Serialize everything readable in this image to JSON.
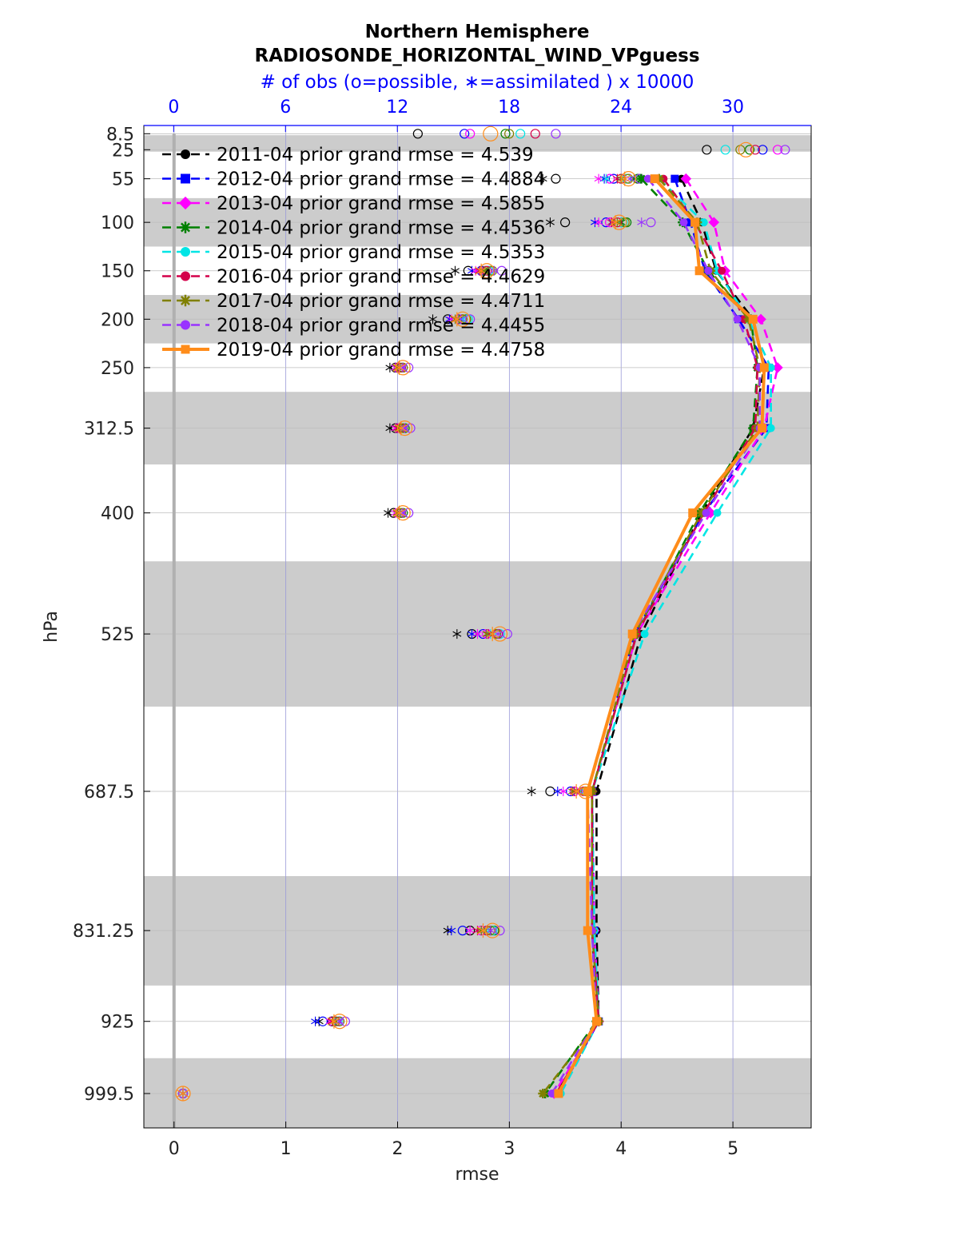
{
  "chart_data": {
    "type": "line",
    "title": "Northern Hemisphere",
    "subtitle": "RADIOSONDE_HORIZONTAL_WIND_VPguess",
    "top_axis_label": "# of obs (o=possible, ∗=assimilated ) x 10000",
    "xlabel": "rmse",
    "ylabel": "hPa",
    "xlim": [
      -0.27,
      5.7
    ],
    "x_ticks": [
      0,
      1,
      2,
      3,
      4,
      5
    ],
    "top_xlim": [
      -1.6,
      34.2
    ],
    "top_ticks": [
      0,
      6,
      12,
      18,
      24,
      30
    ],
    "ylim": [
      1035,
      0
    ],
    "levels": [
      8.5,
      25,
      55,
      100,
      150,
      200,
      250,
      312.5,
      400,
      525,
      687.5,
      831.25,
      925,
      999.5
    ],
    "level_labels": [
      "8.5",
      "25",
      "55",
      "100",
      "150",
      "200",
      "250",
      "312.5",
      "400",
      "525",
      "687.5",
      "831.25",
      "925",
      "999.5"
    ],
    "bands": [
      [
        10,
        27
      ],
      [
        75,
        125
      ],
      [
        175,
        225
      ],
      [
        275,
        350
      ],
      [
        450,
        600
      ],
      [
        775,
        888
      ],
      [
        963,
        1035
      ]
    ],
    "axis_color": "#0000ff",
    "legend_location": "top-left",
    "series": [
      {
        "label": "2011-04 prior grand rmse = 4.539",
        "color": "#000000",
        "marker": "circle",
        "dash": "dash",
        "rmse": [
          null,
          null,
          4.54,
          4.72,
          4.85,
          5.18,
          5.28,
          5.18,
          4.72,
          4.18,
          3.78,
          3.78,
          3.8,
          3.42
        ],
        "possible": [
          13.1,
          28.6,
          20.5,
          21.0,
          15.8,
          14.7,
          11.9,
          11.9,
          11.8,
          16.0,
          20.2,
          15.9,
          8.5,
          0.5
        ],
        "assimilated": [
          null,
          null,
          19.8,
          20.2,
          15.1,
          13.9,
          11.6,
          11.6,
          11.5,
          15.2,
          19.2,
          14.7,
          7.8,
          0.5
        ]
      },
      {
        "label": "2012-04 prior grand rmse = 4.4884",
        "color": "#0000ff",
        "marker": "square",
        "dash": "dash",
        "rmse": [
          null,
          null,
          4.48,
          4.62,
          4.75,
          5.05,
          5.32,
          5.3,
          4.74,
          4.12,
          3.74,
          3.76,
          3.8,
          3.44
        ],
        "possible": [
          15.6,
          31.6,
          23.6,
          23.2,
          16.5,
          15.3,
          12.1,
          12.2,
          12.2,
          16.6,
          21.3,
          15.5,
          8.0,
          0.5
        ],
        "assimilated": [
          null,
          null,
          23.1,
          22.6,
          16.0,
          14.8,
          11.9,
          12.0,
          12.0,
          16.0,
          20.6,
          14.9,
          7.6,
          0.5
        ]
      },
      {
        "label": "2013-04 prior grand rmse = 4.5855",
        "color": "#ff00ff",
        "marker": "diamond",
        "dash": "dash",
        "rmse": [
          null,
          null,
          4.58,
          4.83,
          4.93,
          5.25,
          5.4,
          5.28,
          4.8,
          4.14,
          3.74,
          3.76,
          3.8,
          3.4
        ],
        "possible": [
          15.9,
          32.4,
          23.4,
          23.4,
          16.7,
          15.3,
          12.1,
          12.1,
          12.1,
          16.8,
          21.5,
          16.5,
          8.7,
          0.5
        ],
        "assimilated": [
          null,
          null,
          22.8,
          22.8,
          16.2,
          14.9,
          11.9,
          11.9,
          11.9,
          16.3,
          20.9,
          15.9,
          8.4,
          0.5
        ]
      },
      {
        "label": "2014-04 prior grand rmse = 4.4536",
        "color": "#008000",
        "marker": "star",
        "dash": "dash",
        "rmse": [
          null,
          null,
          4.18,
          4.55,
          4.78,
          5.16,
          5.22,
          5.18,
          4.7,
          4.14,
          3.74,
          3.74,
          3.78,
          3.32
        ],
        "possible": [
          17.8,
          30.9,
          24.9,
          24.3,
          17.0,
          15.7,
          12.3,
          12.4,
          12.3,
          17.3,
          22.3,
          17.2,
          8.9,
          0.5
        ],
        "assimilated": [
          null,
          null,
          24.7,
          24.0,
          16.6,
          15.3,
          12.1,
          12.2,
          12.1,
          16.8,
          21.6,
          16.5,
          8.6,
          0.5
        ]
      },
      {
        "label": "2015-04 prior grand rmse = 4.5353",
        "color": "#00e5e5",
        "marker": "circle",
        "dash": "dash",
        "rmse": [
          null,
          null,
          4.34,
          4.74,
          4.86,
          5.14,
          5.34,
          5.34,
          4.86,
          4.21,
          3.74,
          3.76,
          3.8,
          3.46
        ],
        "possible": [
          18.6,
          29.6,
          24.3,
          24.1,
          16.9,
          15.8,
          12.2,
          12.3,
          12.2,
          17.5,
          22.4,
          17.1,
          8.8,
          0.5
        ],
        "assimilated": [
          null,
          null,
          23.2,
          23.8,
          16.7,
          15.5,
          12.0,
          12.1,
          12.0,
          17.0,
          21.8,
          16.7,
          8.6,
          0.5
        ]
      },
      {
        "label": "2016-04 prior grand rmse = 4.4629",
        "color": "#d4004a",
        "marker": "circle",
        "dash": "dash",
        "rmse": [
          null,
          null,
          4.38,
          4.66,
          4.9,
          5.1,
          5.22,
          5.2,
          4.74,
          4.14,
          3.74,
          3.74,
          3.8,
          3.42
        ],
        "possible": [
          19.4,
          31.2,
          24.0,
          23.8,
          16.8,
          15.5,
          12.2,
          12.2,
          12.2,
          17.4,
          22.0,
          16.8,
          8.7,
          0.5
        ],
        "assimilated": [
          null,
          null,
          23.8,
          23.5,
          16.4,
          15.2,
          12.0,
          12.0,
          12.0,
          16.9,
          21.5,
          16.3,
          8.5,
          0.5
        ]
      },
      {
        "label": "2017-04 prior grand rmse = 4.4711",
        "color": "#808000",
        "marker": "star",
        "dash": "dash",
        "rmse": [
          null,
          null,
          4.34,
          4.68,
          4.8,
          5.14,
          5.24,
          5.22,
          4.72,
          4.12,
          3.74,
          3.74,
          3.8,
          3.3
        ],
        "possible": [
          18.0,
          30.4,
          24.4,
          24.2,
          17.1,
          15.5,
          12.3,
          12.3,
          12.2,
          17.3,
          22.1,
          17.0,
          8.9,
          0.5
        ],
        "assimilated": [
          null,
          null,
          24.0,
          23.8,
          16.7,
          15.1,
          12.0,
          12.1,
          12.0,
          16.8,
          21.4,
          16.5,
          8.7,
          0.5
        ]
      },
      {
        "label": "2018-04 prior grand rmse = 4.4455",
        "color": "#9933ff",
        "marker": "circle",
        "dash": "dash",
        "rmse": [
          null,
          null,
          4.24,
          4.56,
          4.78,
          5.04,
          5.24,
          5.24,
          4.76,
          4.1,
          3.7,
          3.74,
          3.78,
          3.38
        ],
        "possible": [
          20.5,
          32.8,
          25.0,
          25.6,
          17.6,
          15.9,
          12.6,
          12.7,
          12.6,
          17.9,
          22.6,
          17.5,
          9.2,
          0.5
        ],
        "assimilated": [
          null,
          null,
          24.5,
          25.1,
          17.2,
          15.4,
          12.3,
          12.4,
          12.3,
          17.4,
          22.0,
          17.0,
          8.9,
          0.5
        ]
      },
      {
        "label": "2019-04 prior grand rmse = 4.4758",
        "color": "#ff8c1a",
        "marker": "square",
        "dash": "solid",
        "rmse": [
          null,
          null,
          4.3,
          4.66,
          4.7,
          5.18,
          5.28,
          5.26,
          4.64,
          4.1,
          3.7,
          3.7,
          3.78,
          3.44
        ],
        "possible": [
          17.0,
          30.7,
          24.4,
          23.9,
          16.8,
          15.5,
          12.3,
          12.4,
          12.3,
          17.5,
          22.1,
          17.1,
          8.9,
          0.5
        ],
        "assimilated": [
          null,
          null,
          24.2,
          23.7,
          16.5,
          15.2,
          12.1,
          12.2,
          12.1,
          17.1,
          21.6,
          16.6,
          8.6,
          0.5
        ]
      }
    ]
  }
}
